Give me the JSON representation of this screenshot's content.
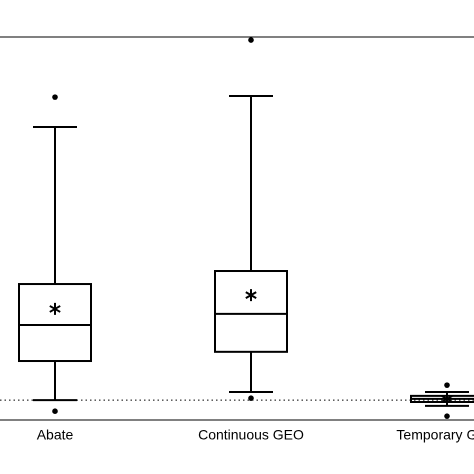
{
  "chart_data": {
    "type": "box",
    "categories": [
      "Abate",
      "Continuous GEO",
      "Temporary GEO"
    ],
    "ylim": [
      0,
      100
    ],
    "reference_line": 5.2,
    "color": "#000000",
    "boxes": [
      {
        "whisker_high": 76.5,
        "q3": 35.5,
        "median": 24.8,
        "q1": 15.4,
        "whisker_low": 5.2,
        "mean": 29.0,
        "outliers": [
          84.3,
          2.3
        ]
      },
      {
        "whisker_high": 84.6,
        "q3": 38.9,
        "median": 27.7,
        "q1": 17.8,
        "whisker_low": 7.3,
        "mean": 32.6,
        "outliers": [
          99.2,
          5.7
        ]
      },
      {
        "whisker_high": 7.3,
        "q3": 6.3,
        "median": 5.5,
        "q1": 4.7,
        "whisker_low": 3.7,
        "mean": 5.5,
        "outliers": [
          9.1,
          1.0
        ]
      }
    ]
  }
}
